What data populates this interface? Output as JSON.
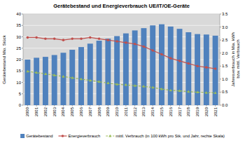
{
  "chart_data": {
    "type": "bar",
    "title": "Gerätebestand und Energieverbrauch UE/IT/OE-Geräte",
    "y_label": "Gerätebestand Mio. Stück",
    "y2_label": "Jahresverbrauch in Mia. kWh bzw. mittl. Verbrauch",
    "categories": [
      "2000",
      "2001",
      "2002",
      "2003",
      "2004",
      "2005",
      "2006",
      "2007",
      "2008",
      "2009",
      "2010",
      "2011",
      "2012",
      "2013",
      "2014",
      "2015",
      "2016",
      "2017",
      "2018",
      "2019",
      "2020",
      "2021"
    ],
    "series": [
      {
        "name": "Gerätebestand",
        "type": "bar",
        "color": "#4f81bd",
        "values": [
          20,
          20.8,
          21.2,
          22,
          23,
          24.3,
          25.5,
          27,
          28.3,
          29.2,
          30.3,
          31.5,
          32.8,
          33.8,
          35,
          35.5,
          34.5,
          33.5,
          32,
          31.2,
          31,
          30.5
        ]
      },
      {
        "name": "Energieverbrauch",
        "type": "line",
        "axis": "y2",
        "color": "#c0504d",
        "marker": "circle",
        "line_style": "solid",
        "values": [
          2.6,
          2.6,
          2.55,
          2.55,
          2.5,
          2.55,
          2.55,
          2.6,
          2.55,
          2.5,
          2.45,
          2.4,
          2.35,
          2.25,
          2.1,
          1.95,
          1.8,
          1.7,
          1.6,
          1.5,
          1.45,
          1.4
        ]
      },
      {
        "name": "mittl. Verbrauch (in 100 kWh pro Stk. und Jahr, rechte Skala)",
        "type": "line",
        "axis": "y2",
        "color": "#9bbb59",
        "marker": "triangle",
        "line_style": "dashed",
        "values": [
          1.3,
          1.25,
          1.2,
          1.15,
          1.1,
          1.05,
          1.0,
          0.95,
          0.9,
          0.85,
          0.8,
          0.78,
          0.75,
          0.72,
          0.68,
          0.62,
          0.57,
          0.55,
          0.52,
          0.5,
          0.48,
          0.47
        ]
      }
    ],
    "ylim": [
      0,
      40
    ],
    "yticks": [
      0,
      5,
      10,
      15,
      20,
      25,
      30,
      35,
      40
    ],
    "y2lim": [
      0,
      3.5
    ],
    "y2ticks": [
      {
        "value": 0,
        "label": "0.0"
      },
      0.5,
      {
        "value": 1,
        "label": "1.0"
      },
      1.5,
      {
        "value": 2,
        "label": "2.0"
      },
      2.5,
      {
        "value": 3,
        "label": "3.0"
      },
      3.5
    ],
    "grid": true,
    "legend": "bottom"
  }
}
